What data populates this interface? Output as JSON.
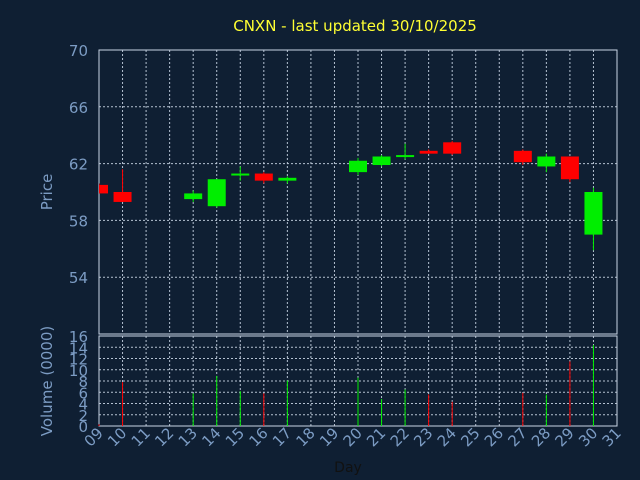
{
  "title": "CNXN - last updated 30/10/2025",
  "colors": {
    "background": "#0f1f33",
    "title": "#ffff33",
    "axis_text": "#7c9cc4",
    "up": "#00ee00",
    "down": "#ff0000",
    "grid": "#c8d4e4"
  },
  "chart_data": [
    {
      "type": "candlestick",
      "title": "CNXN - last updated 30/10/2025",
      "ylabel": "Price",
      "ylim": [
        50,
        70
      ],
      "yticks": [
        54,
        58,
        62,
        66,
        70
      ],
      "grid": true,
      "x": [
        "09",
        "10",
        "13",
        "14",
        "15",
        "16",
        "17",
        "20",
        "21",
        "22",
        "23",
        "24",
        "27",
        "28",
        "29",
        "30"
      ],
      "open": [
        60.5,
        60.0,
        59.5,
        59.0,
        61.2,
        61.3,
        60.8,
        61.4,
        61.9,
        62.5,
        62.9,
        63.5,
        62.9,
        61.8,
        62.5,
        57.0
      ],
      "high": [
        60.6,
        61.6,
        60.1,
        60.9,
        61.8,
        61.4,
        61.1,
        62.4,
        62.6,
        63.4,
        63.0,
        63.6,
        63.0,
        62.7,
        62.5,
        60.3
      ],
      "low": [
        59.9,
        59.3,
        59.3,
        58.9,
        60.8,
        60.6,
        60.6,
        61.2,
        61.8,
        62.3,
        62.7,
        62.6,
        61.9,
        61.4,
        60.7,
        55.9
      ],
      "close": [
        59.9,
        59.3,
        59.9,
        60.9,
        61.3,
        60.8,
        61.0,
        62.2,
        62.5,
        62.6,
        62.7,
        62.7,
        62.1,
        62.5,
        60.9,
        60.0
      ]
    },
    {
      "type": "bar",
      "ylabel": "Volume (0000)",
      "xlabel": "Day",
      "ylim": [
        0,
        16
      ],
      "yticks": [
        0,
        2,
        4,
        6,
        8,
        10,
        12,
        14,
        16
      ],
      "x": [
        "09",
        "10",
        "13",
        "14",
        "15",
        "16",
        "17",
        "20",
        "21",
        "22",
        "23",
        "24",
        "27",
        "28",
        "29",
        "30"
      ],
      "values": [
        0.3,
        7.8,
        5.8,
        8.9,
        6.2,
        5.8,
        8.1,
        8.6,
        4.8,
        6.5,
        5.6,
        4.3,
        5.9,
        5.6,
        11.5,
        14.4
      ]
    }
  ],
  "x_axis_ticks": [
    "09",
    "10",
    "11",
    "12",
    "13",
    "14",
    "15",
    "16",
    "17",
    "18",
    "19",
    "20",
    "21",
    "22",
    "23",
    "24",
    "25",
    "26",
    "27",
    "28",
    "29",
    "30",
    "31"
  ]
}
